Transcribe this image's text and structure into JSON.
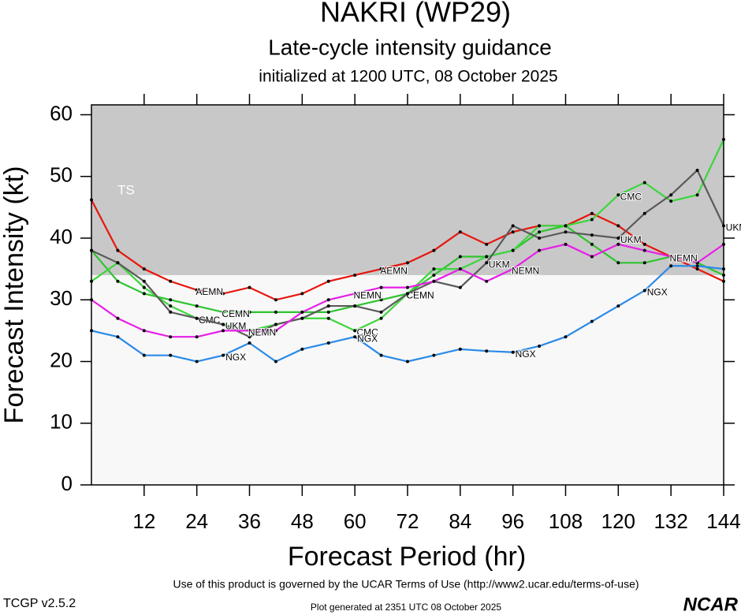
{
  "chart_data": {
    "type": "line",
    "title": "NAKRI (WP29)",
    "subtitle": "Late-cycle intensity guidance",
    "initialized": "initialized at 1200 UTC, 08 October 2025",
    "x_label": "Forecast Period (hr)",
    "y_label": "Forecast Intensity (kt)",
    "band_label": "TS",
    "band_from": 34,
    "x": [
      0,
      6,
      12,
      18,
      24,
      30,
      36,
      42,
      48,
      54,
      60,
      66,
      72,
      78,
      84,
      90,
      96,
      102,
      108,
      114,
      120,
      126,
      132,
      138,
      144
    ],
    "xlim": [
      0,
      144
    ],
    "xticks": [
      12,
      24,
      36,
      48,
      60,
      72,
      84,
      96,
      108,
      120,
      132,
      144
    ],
    "ylim": [
      0,
      61.6
    ],
    "yticks": [
      0,
      10,
      20,
      30,
      40,
      50,
      60
    ],
    "series": [
      {
        "name": "AEMN",
        "color": "#e8150c",
        "values": [
          46.2,
          38,
          35,
          33,
          31.6,
          31,
          32,
          30,
          31,
          33,
          34,
          35,
          36,
          38,
          41,
          39,
          41,
          42,
          42,
          44,
          42,
          39,
          37,
          35,
          33
        ]
      },
      {
        "name": "CEMN",
        "color": "#2ec42e",
        "values": [
          38,
          33,
          31,
          30,
          29,
          28,
          28,
          28,
          28,
          28,
          29,
          30,
          31,
          34,
          37,
          37,
          38,
          41,
          42,
          39,
          36,
          36,
          37,
          36,
          34
        ]
      },
      {
        "name": "CMC",
        "color": "#3cd63c",
        "values": [
          33,
          36,
          32,
          29,
          27,
          26,
          25,
          26,
          27,
          27,
          25,
          27,
          31,
          35,
          35,
          37,
          38,
          42,
          42,
          43,
          47,
          49,
          46,
          47,
          56
        ]
      },
      {
        "name": "UKM",
        "color": "#5a5a5a",
        "values": [
          38,
          36,
          33,
          28,
          27,
          26,
          24,
          26,
          27,
          29,
          29,
          28,
          31,
          33,
          32,
          36,
          42,
          40,
          41,
          40.5,
          40,
          44,
          47,
          51,
          42
        ]
      },
      {
        "name": "NEMN",
        "color": "#e81ee8",
        "values": [
          30,
          27,
          25,
          24,
          24,
          25,
          25,
          25,
          28,
          30,
          31,
          32,
          32,
          33,
          35,
          33,
          35,
          38,
          39,
          37,
          39,
          38,
          37,
          36,
          39
        ]
      },
      {
        "name": "NGX",
        "color": "#2a8ae8",
        "values": [
          25,
          24,
          21,
          21,
          20,
          21,
          23,
          20,
          22,
          23,
          24,
          21,
          20,
          21,
          22,
          21.7,
          21.5,
          22.5,
          24,
          26.5,
          29,
          31.5,
          35.5,
          35.5,
          35
        ]
      }
    ],
    "terms": "Use of this product is governed by the UCAR Terms of Use (http://www2.ucar.edu/terms-of-use)",
    "version": "TCGP v2.5.2",
    "generated": "Plot generated at 2351 UTC   08 October 2025",
    "logo": "NCAR"
  }
}
